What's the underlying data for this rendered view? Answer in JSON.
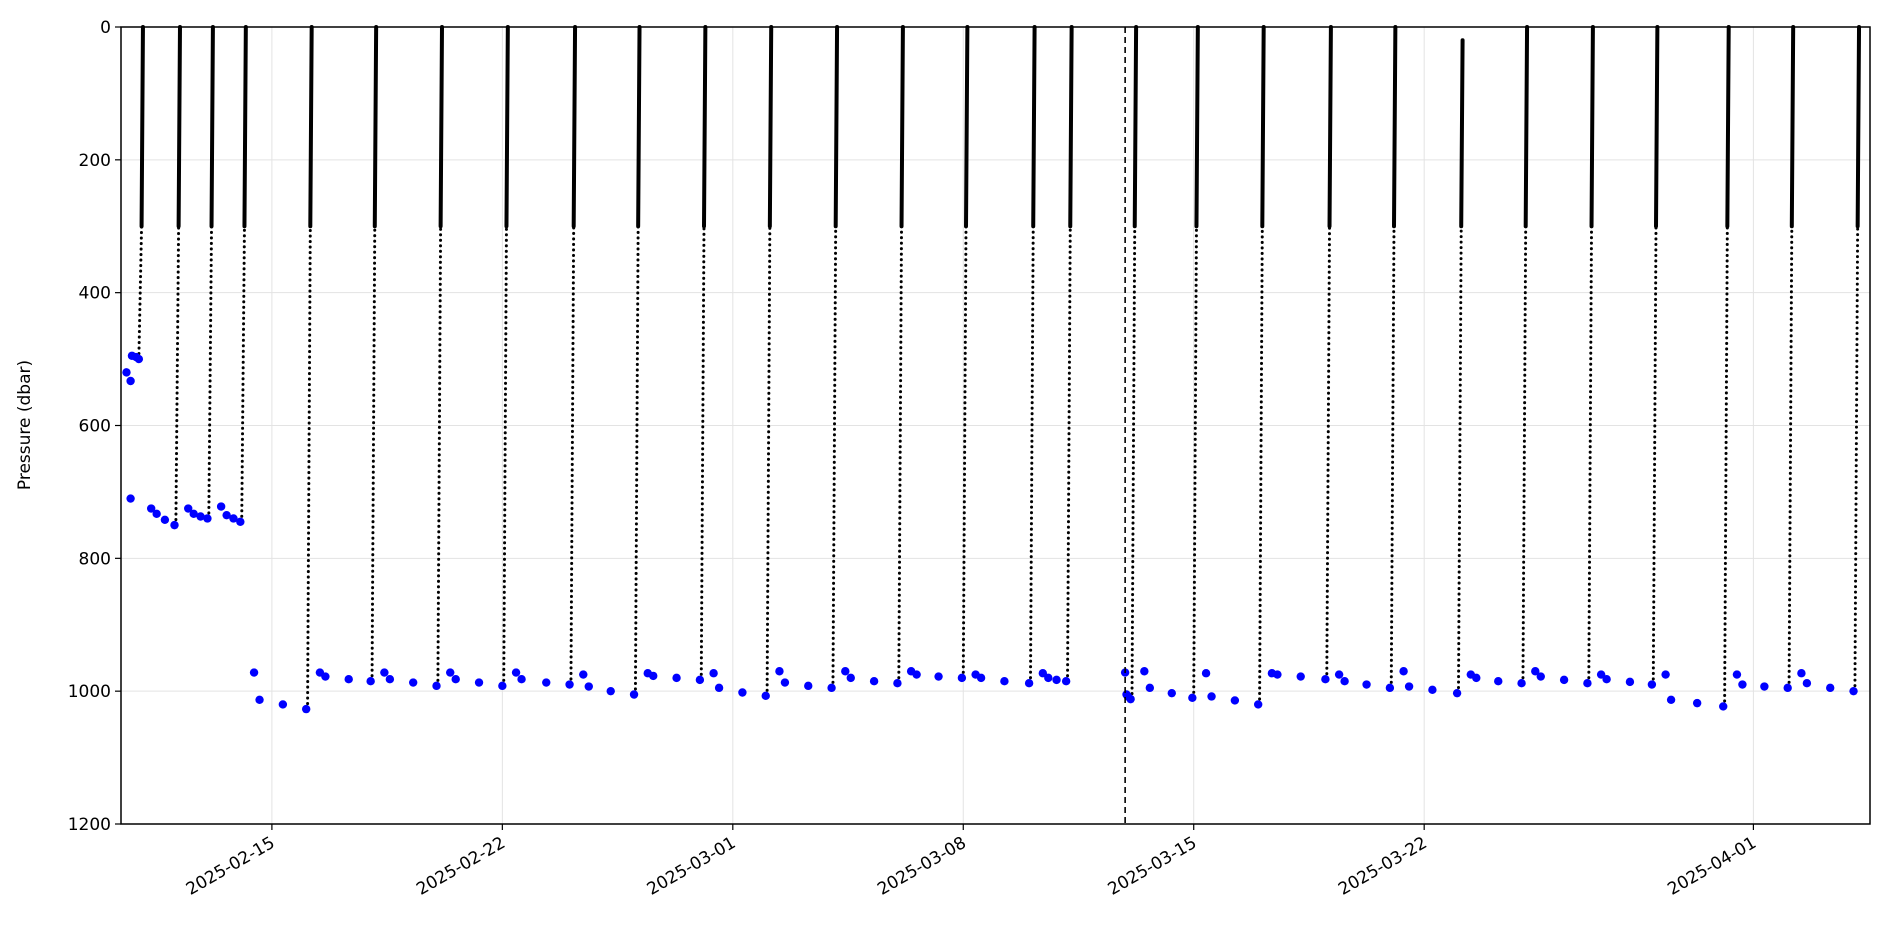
{
  "chart_data": {
    "type": "scatter",
    "y_label": "Pressure (dbar)",
    "xlim": [
      "2025-02-10T10:00",
      "2025-04-04T13:00"
    ],
    "ylim": [
      1200,
      0
    ],
    "xticks": [
      "2025-02-15",
      "2025-02-22",
      "2025-03-01",
      "2025-03-08",
      "2025-03-15",
      "2025-03-22",
      "2025-04-01"
    ],
    "yticks": [
      0,
      200,
      400,
      600,
      800,
      1000,
      1200
    ],
    "grid": true,
    "vline": "2025-03-12T22:00",
    "series": [
      {
        "color": "#000000",
        "x": [
          "2025-02-10T23:00",
          "2025-02-11T01:00",
          "2025-02-11T02:00",
          null,
          "2025-02-12T02:00",
          "2025-02-12T04:00",
          "2025-02-12T05:00",
          null,
          "2025-02-13T02:00",
          "2025-02-13T04:00",
          "2025-02-13T05:00",
          null,
          "2025-02-14T02:00",
          "2025-02-14T04:00",
          "2025-02-14T05:00",
          null,
          "2025-02-16T02:00",
          "2025-02-16T04:00",
          "2025-02-16T05:00",
          null,
          "2025-02-18T01:00",
          "2025-02-18T03:00",
          "2025-02-18T04:00",
          null,
          "2025-02-20T01:00",
          "2025-02-20T03:00",
          "2025-02-20T04:00",
          null,
          "2025-02-22T01:00",
          "2025-02-22T03:00",
          "2025-02-22T04:00",
          null,
          "2025-02-24T02:00",
          "2025-02-24T04:00",
          "2025-02-24T05:00",
          null,
          "2025-02-26T01:00",
          "2025-02-26T03:00",
          "2025-02-26T04:00",
          null,
          "2025-02-28T01:00",
          "2025-02-28T03:00",
          "2025-02-28T04:00",
          null,
          "2025-03-02T01:00",
          "2025-03-02T03:00",
          "2025-03-02T04:00",
          null,
          "2025-03-04T01:00",
          "2025-03-04T03:00",
          "2025-03-04T04:00",
          null,
          "2025-03-06T01:00",
          "2025-03-06T03:00",
          "2025-03-06T04:00",
          null,
          "2025-03-08T00:00",
          "2025-03-08T02:00",
          "2025-03-08T03:00",
          null,
          "2025-03-10T01:00",
          "2025-03-10T03:00",
          "2025-03-10T04:00",
          null,
          "2025-03-11T04:00",
          "2025-03-11T06:00",
          "2025-03-11T07:00",
          null,
          "2025-03-13T03:00",
          "2025-03-13T05:00",
          "2025-03-13T06:00",
          null,
          "2025-03-15T00:00",
          "2025-03-15T02:00",
          "2025-03-15T03:00",
          null,
          "2025-03-17T00:00",
          "2025-03-17T02:00",
          "2025-03-17T03:00",
          null,
          "2025-03-19T01:00",
          "2025-03-19T03:00",
          "2025-03-19T04:00",
          null,
          "2025-03-21T00:00",
          "2025-03-21T02:00",
          "2025-03-21T03:00",
          null,
          "2025-03-23T01:00",
          "2025-03-23T03:00",
          "2025-03-23T04:00",
          null,
          "2025-03-25T00:00",
          "2025-03-25T02:00",
          "2025-03-25T03:00",
          null,
          "2025-03-27T00:00",
          "2025-03-27T02:00",
          "2025-03-27T03:00",
          null,
          "2025-03-28T23:00",
          "2025-03-29T01:00",
          "2025-03-29T02:00",
          null,
          "2025-03-31T03:00",
          "2025-03-31T05:00",
          "2025-03-31T06:00",
          null,
          "2025-04-02T02:00",
          "2025-04-02T04:00",
          "2025-04-02T05:00",
          null,
          "2025-04-04T02:00",
          "2025-04-04T04:00",
          "2025-04-04T05:00"
        ],
        "values": [
          500,
          300,
          0,
          null,
          750,
          300,
          0,
          null,
          740,
          300,
          0,
          null,
          745,
          300,
          0,
          null,
          1027,
          300,
          0,
          null,
          985,
          300,
          0,
          null,
          992,
          300,
          0,
          null,
          992,
          300,
          0,
          null,
          990,
          300,
          0,
          null,
          1005,
          300,
          0,
          null,
          983,
          300,
          0,
          null,
          1007,
          300,
          0,
          null,
          995,
          300,
          0,
          null,
          988,
          300,
          0,
          null,
          980,
          300,
          0,
          null,
          988,
          300,
          0,
          null,
          985,
          300,
          0,
          null,
          1012,
          300,
          0,
          null,
          1010,
          300,
          0,
          null,
          1020,
          300,
          0,
          null,
          982,
          300,
          0,
          null,
          995,
          300,
          0,
          null,
          1003,
          300,
          20,
          null,
          988,
          300,
          0,
          null,
          988,
          300,
          0,
          null,
          990,
          300,
          0,
          null,
          1023,
          300,
          0,
          null,
          995,
          300,
          0,
          null,
          1000,
          300,
          0
        ]
      },
      {
        "color": "#0000ff",
        "x": [
          "2025-02-10T14:00",
          "2025-02-10T17:00",
          "2025-02-10T17:00",
          "2025-02-10T18:00",
          "2025-02-10T21:00",
          "2025-02-10T23:00",
          "2025-02-11T08:00",
          "2025-02-11T12:00",
          "2025-02-11T18:00",
          "2025-02-12T01:00",
          "2025-02-12T11:00",
          "2025-02-12T15:00",
          "2025-02-12T20:00",
          "2025-02-13T01:00",
          "2025-02-13T11:00",
          "2025-02-13T15:00",
          "2025-02-13T20:00",
          "2025-02-14T01:00",
          "2025-02-14T11:00",
          "2025-02-14T15:00",
          "2025-02-15T08:00",
          "2025-02-16T01:00",
          "2025-02-16T11:00",
          "2025-02-16T15:00",
          "2025-02-17T08:00",
          "2025-02-18T00:00",
          "2025-02-18T10:00",
          "2025-02-18T14:00",
          "2025-02-19T07:00",
          "2025-02-20T00:00",
          "2025-02-20T10:00",
          "2025-02-20T14:00",
          "2025-02-21T07:00",
          "2025-02-22T00:00",
          "2025-02-22T10:00",
          "2025-02-22T14:00",
          "2025-02-23T08:00",
          "2025-02-24T01:00",
          "2025-02-24T11:00",
          "2025-02-24T15:00",
          "2025-02-25T07:00",
          "2025-02-26T00:00",
          "2025-02-26T10:00",
          "2025-02-26T14:00",
          "2025-02-27T07:00",
          "2025-02-28T00:00",
          "2025-02-28T10:00",
          "2025-02-28T14:00",
          "2025-03-01T07:00",
          "2025-03-02T00:00",
          "2025-03-02T10:00",
          "2025-03-02T14:00",
          "2025-03-03T07:00",
          "2025-03-04T00:00",
          "2025-03-04T10:00",
          "2025-03-04T14:00",
          "2025-03-05T07:00",
          "2025-03-06T00:00",
          "2025-03-06T10:00",
          "2025-03-06T14:00",
          "2025-03-07T06:00",
          "2025-03-07T23:00",
          "2025-03-08T09:00",
          "2025-03-08T13:00",
          "2025-03-09T06:00",
          "2025-03-10T00:00",
          "2025-03-10T10:00",
          "2025-03-10T14:00",
          "2025-03-10T20:00",
          "2025-03-11T03:00",
          "2025-03-12T22:00",
          "2025-03-12T23:00",
          "2025-03-13T00:00",
          "2025-03-13T02:00",
          "2025-03-13T12:00",
          "2025-03-13T16:00",
          "2025-03-14T08:00",
          "2025-03-14T23:00",
          "2025-03-15T09:00",
          "2025-03-15T13:00",
          "2025-03-16T06:00",
          "2025-03-16T23:00",
          "2025-03-17T09:00",
          "2025-03-17T13:00",
          "2025-03-18T06:00",
          "2025-03-19T00:00",
          "2025-03-19T10:00",
          "2025-03-19T14:00",
          "2025-03-20T06:00",
          "2025-03-20T23:00",
          "2025-03-21T09:00",
          "2025-03-21T13:00",
          "2025-03-22T06:00",
          "2025-03-23T00:00",
          "2025-03-23T10:00",
          "2025-03-23T14:00",
          "2025-03-24T06:00",
          "2025-03-24T23:00",
          "2025-03-25T09:00",
          "2025-03-25T13:00",
          "2025-03-26T06:00",
          "2025-03-26T23:00",
          "2025-03-27T09:00",
          "2025-03-27T13:00",
          "2025-03-28T06:00",
          "2025-03-28T22:00",
          "2025-03-29T08:00",
          "2025-03-29T12:00",
          "2025-03-30T07:00",
          "2025-03-31T02:00",
          "2025-03-31T12:00",
          "2025-03-31T16:00",
          "2025-04-01T08:00",
          "2025-04-02T01:00",
          "2025-04-02T11:00",
          "2025-04-02T15:00",
          "2025-04-03T08:00",
          "2025-04-04T01:00"
        ],
        "values": [
          520,
          533,
          710,
          495,
          497,
          500,
          725,
          733,
          742,
          750,
          725,
          733,
          737,
          740,
          722,
          735,
          740,
          745,
          972,
          1013,
          1020,
          1027,
          972,
          978,
          982,
          985,
          972,
          982,
          987,
          992,
          972,
          982,
          987,
          992,
          972,
          982,
          987,
          990,
          975,
          993,
          1000,
          1005,
          973,
          977,
          980,
          983,
          973,
          995,
          1002,
          1007,
          970,
          987,
          992,
          995,
          970,
          980,
          985,
          988,
          970,
          975,
          978,
          980,
          975,
          980,
          985,
          988,
          973,
          980,
          983,
          985,
          972,
          1005,
          1008,
          1012,
          970,
          995,
          1003,
          1010,
          973,
          1008,
          1014,
          1020,
          973,
          975,
          978,
          982,
          975,
          985,
          990,
          995,
          970,
          993,
          998,
          1003,
          975,
          980,
          985,
          988,
          970,
          978,
          983,
          988,
          975,
          982,
          986,
          990,
          975,
          1013,
          1018,
          1023,
          975,
          990,
          993,
          995,
          973,
          988,
          995,
          1000
        ]
      }
    ]
  }
}
